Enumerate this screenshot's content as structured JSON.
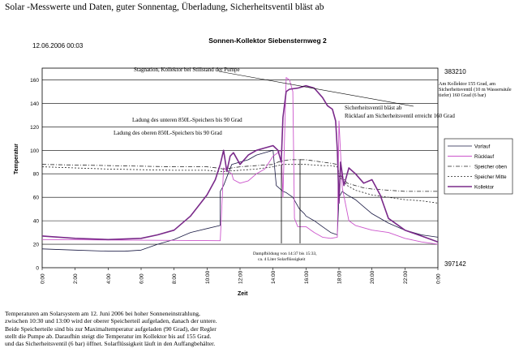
{
  "header": "Solar -Messwerte und Daten, guter Sonnentag, Überladung, Sicherheitsventil bläst ab",
  "timestamp": "12.06.2006 00:03",
  "right_numbers": {
    "top": "383210",
    "bottom": "397142"
  },
  "right_note": "Am Kollektor 155 Grad, am Sicherheitsventil (10 m Wassersäule tiefer) 160 Grad (6 bar)",
  "caption_lines": [
    "Temperaturen am Solarsystem am 12. Juni 2006 bei hoher Sonneneinstrahlung,",
    "zwischen 10:30 und 13:00 wird der oberer Speicherteil aufgeladen, danach der untere.",
    "Beide Speicherteile sind bis zur Maximaltemperatur aufgeladen (90 Grad), der Regler",
    "stellt die Pumpe ab. Daraufhin steigt die Temperatur im Kollektor bis auf 155 Grad.",
    "und das Sicherheitsventil (6 bar) öffnet. Solarflüssigkeit läuft in den Auffangbehälter."
  ],
  "colors": {
    "vorlauf": "#1a1a44",
    "ruecklauf": "#cc55cc",
    "speicher_oben": "#222222",
    "speicher_mitte": "#222222",
    "kollektor": "#7a2a8a",
    "grid": "#000000"
  },
  "chart_data": {
    "type": "line",
    "title": "Sonnen-Kollektor Siebensternweg 2",
    "xlabel": "Zeit",
    "ylabel": "Temperatur",
    "xlim": [
      0,
      24
    ],
    "ylim": [
      0,
      170
    ],
    "x_ticks": [
      "0:00",
      "2:00",
      "4:00",
      "6:00",
      "8:00",
      "10:00",
      "12:00",
      "14:00",
      "16:00",
      "18:00",
      "20:00",
      "22:00",
      "0:00"
    ],
    "y_ticks": [
      0,
      20,
      40,
      60,
      80,
      100,
      120,
      140,
      160
    ],
    "grid": "horizontal",
    "legend": "right",
    "series": [
      {
        "name": "Vorlauf",
        "style": "solid",
        "x": [
          0,
          2,
          4,
          5,
          6,
          7,
          8,
          9,
          10.8,
          10.8,
          11,
          11.5,
          12,
          12.5,
          13,
          13.5,
          14,
          14.2,
          14.6,
          14.8,
          15.2,
          15.6,
          15.9,
          16,
          16.5,
          17,
          17.5,
          17.9,
          18,
          18.2,
          18.5,
          19,
          19.5,
          20,
          21,
          22,
          23,
          24
        ],
        "y": [
          16,
          15,
          14,
          14,
          15,
          20,
          24,
          30,
          36,
          65,
          70,
          88,
          90,
          92,
          96,
          98,
          100,
          70,
          65,
          64,
          60,
          50,
          46,
          44,
          40,
          35,
          30,
          28,
          60,
          65,
          62,
          58,
          52,
          46,
          38,
          32,
          28,
          26
        ]
      },
      {
        "name": "Rücklauf",
        "style": "solid",
        "x": [
          0,
          10.8,
          10.8,
          11,
          11.5,
          11.6,
          12,
          12.5,
          13,
          13.5,
          14,
          14.5,
          14.6,
          14.8,
          15,
          15.2,
          15.3,
          15.5,
          16,
          16.5,
          17,
          17.5,
          17.9,
          18,
          18.2,
          18.6,
          19,
          19.5,
          20,
          21,
          22,
          23,
          24
        ],
        "y": [
          24,
          23,
          23,
          85,
          80,
          75,
          72,
          74,
          80,
          84,
          95,
          100,
          60,
          162,
          160,
          150,
          42,
          35,
          35,
          30,
          26,
          25,
          26,
          125,
          68,
          40,
          36,
          34,
          32,
          30,
          25,
          22,
          20
        ]
      },
      {
        "name": "Speicher oben",
        "style": "dashdot",
        "x": [
          0,
          4,
          8,
          10,
          10.6,
          11,
          11.5,
          12,
          13,
          14,
          14.3,
          14.6,
          15,
          16,
          17,
          17.5,
          17.9,
          18,
          18.5,
          19,
          19.5,
          20,
          21,
          22,
          23,
          24
        ],
        "y": [
          88,
          87,
          86,
          86,
          85,
          84,
          85,
          86,
          87,
          88,
          90,
          91,
          92,
          92,
          90,
          89,
          88,
          80,
          72,
          70,
          68,
          67,
          66,
          65,
          65,
          65
        ]
      },
      {
        "name": "Speicher Mitte",
        "style": "dashed",
        "x": [
          0,
          4,
          8,
          10,
          10.6,
          11,
          12,
          13,
          14,
          14.6,
          15,
          16,
          17,
          17.5,
          17.9,
          18,
          18.5,
          19,
          19.5,
          20,
          21,
          22,
          23,
          24
        ],
        "y": [
          86,
          84,
          83,
          83,
          82,
          82,
          83,
          84,
          86,
          88,
          88,
          88,
          87,
          87,
          86,
          78,
          70,
          66,
          64,
          62,
          60,
          58,
          57,
          55
        ]
      },
      {
        "name": "Kollektor",
        "style": "solid",
        "x": [
          0,
          2,
          4,
          6,
          7,
          8,
          9,
          10,
          10.5,
          10.8,
          11,
          11.2,
          11.4,
          11.6,
          12,
          12.5,
          13,
          13.5,
          14,
          14.3,
          14.5,
          14.6,
          14.8,
          15,
          15.5,
          16,
          16.5,
          17,
          17.3,
          17.6,
          17.8,
          17.9,
          18,
          18.1,
          18.3,
          18.6,
          19,
          19.5,
          20,
          20.5,
          21,
          22,
          23,
          24
        ],
        "y": [
          27,
          25,
          24,
          25,
          28,
          32,
          44,
          62,
          75,
          88,
          100,
          82,
          95,
          98,
          88,
          96,
          100,
          102,
          104,
          100,
          90,
          128,
          150,
          152,
          153,
          155,
          153,
          145,
          138,
          135,
          125,
          100,
          55,
          90,
          70,
          85,
          80,
          72,
          75,
          62,
          42,
          32,
          27,
          22
        ]
      }
    ],
    "annotations": [
      "Stagnation, Kollektor bei Stillstand der Pumpe",
      "Ladung des unteren 850L-Speichers bis 90 Grad",
      "Ladung des oberen 850L-Speichers bis 90 Grad",
      "Sicherheitsventil bläst ab",
      "Rücklauf am Sicherheitsventil erreicht 160 Grad",
      "Dampfbildung von 14:37 bis 15:33,",
      "ca. 4 Liter Solarflüssigkeit"
    ]
  }
}
